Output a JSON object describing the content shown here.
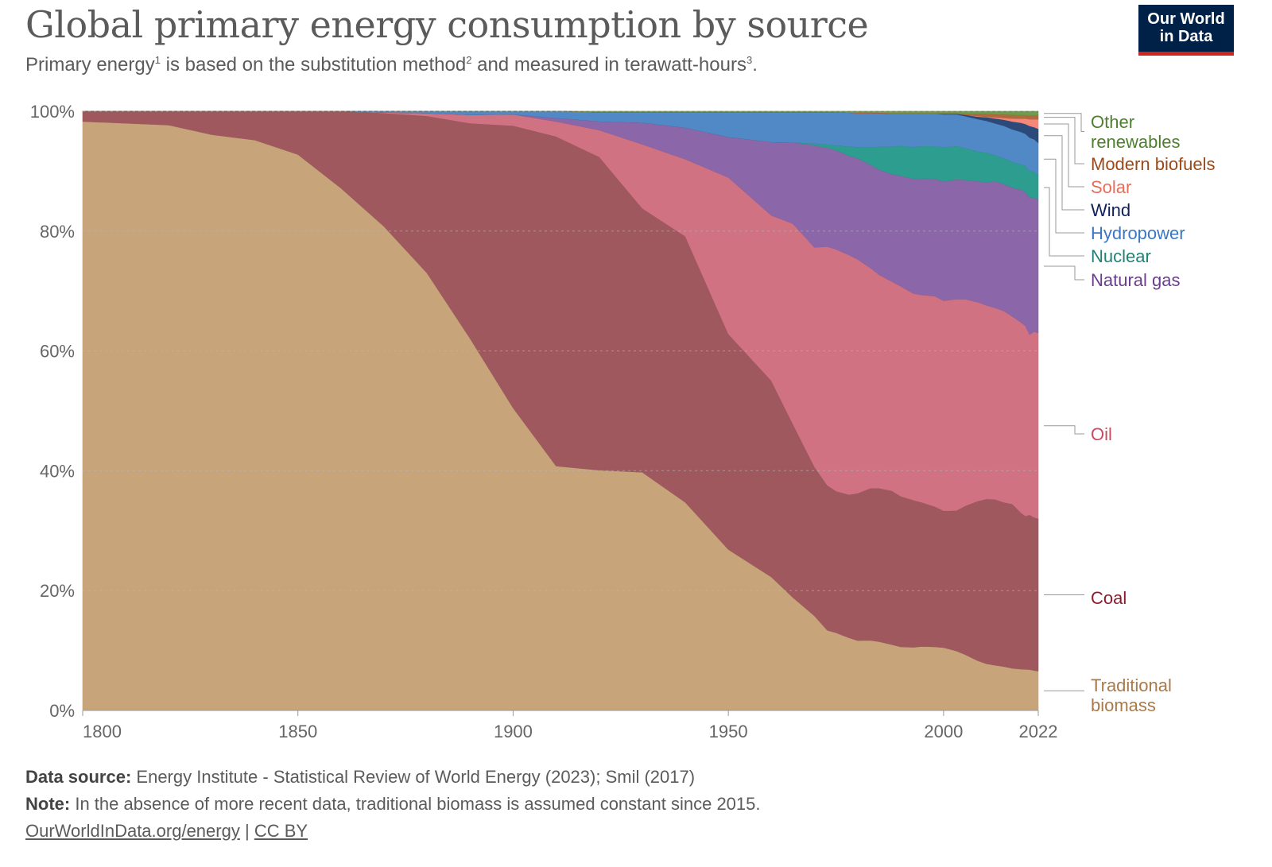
{
  "header": {
    "title": "Global primary energy consumption by source",
    "subtitle_parts": [
      "Primary energy",
      "1",
      " is based on the substitution method",
      "2",
      " and measured in terawatt-hours",
      "3",
      "."
    ],
    "logo_line1": "Our World",
    "logo_line2": "in Data"
  },
  "footer": {
    "source_label": "Data source:",
    "source_text": "Energy Institute - Statistical Review of World Energy (2023); Smil (2017)",
    "note_label": "Note:",
    "note_text": "In the absence of more recent data, traditional biomass is assumed constant since 2015.",
    "link_text": "OurWorldInData.org/energy",
    "separator": "|",
    "license_text": "CC BY"
  },
  "chart_data": {
    "type": "area",
    "stacked_percent": true,
    "x_ticks": [
      1800,
      1850,
      1900,
      1950,
      2000,
      2022
    ],
    "y_ticks": [
      0,
      20,
      40,
      60,
      80,
      100
    ],
    "y_tick_suffix": "%",
    "xlim": [
      1800,
      2022
    ],
    "ylim": [
      0,
      100
    ],
    "grid": "horizontal dashed",
    "legend_placement": "right, inline labels",
    "x": [
      1800,
      1820,
      1830,
      1840,
      1850,
      1860,
      1870,
      1880,
      1890,
      1900,
      1910,
      1920,
      1930,
      1940,
      1950,
      1960,
      1965,
      1970,
      1973,
      1975,
      1978,
      1980,
      1983,
      1985,
      1988,
      1990,
      1993,
      1995,
      1998,
      2000,
      2003,
      2005,
      2008,
      2010,
      2012,
      2014,
      2016,
      2018,
      2019,
      2020,
      2021,
      2022
    ],
    "series": [
      {
        "name": "Traditional biomass",
        "label_lines": [
          "Traditional",
          "biomass"
        ],
        "color": "#c8a47a",
        "label_color": "#a8794b",
        "values": [
          98.3,
          97.7,
          96.1,
          95.2,
          92.8,
          87,
          80.8,
          73,
          62.1,
          50.5,
          40.8,
          38.5,
          36.1,
          31.8,
          26.3,
          21.3,
          18.2,
          15.3,
          13.4,
          12.8,
          11.8,
          11.2,
          11.3,
          11.1,
          10.8,
          10.5,
          10.3,
          10.5,
          10.4,
          10.3,
          9.8,
          9.3,
          8.3,
          7.8,
          7.5,
          7.3,
          7,
          6.8,
          6.8,
          6.7,
          6.6,
          6.5
        ]
      },
      {
        "name": "Coal",
        "label_lines": [
          "Coal"
        ],
        "color": "#a0585f",
        "label_color": "#8c1c2f",
        "values": [
          1.7,
          2.3,
          3.9,
          4.8,
          7.2,
          12.8,
          18.9,
          26.2,
          35.9,
          47.1,
          55,
          50.2,
          40,
          40.6,
          35.2,
          31.3,
          27.9,
          24.1,
          24.2,
          23.3,
          23.2,
          23.6,
          24.5,
          24.7,
          25.2,
          24.8,
          24,
          23.6,
          22.9,
          22.4,
          23.1,
          24.7,
          26.7,
          27.5,
          27.5,
          27.3,
          27.3,
          25.7,
          25.3,
          25.3,
          25.2,
          25.2
        ]
      },
      {
        "name": "Oil",
        "label_lines": [
          "Oil"
        ],
        "color": "#d07282",
        "label_color": "#c84b61",
        "values": [
          0,
          0,
          0,
          0,
          0,
          0,
          0.1,
          0.5,
          1.4,
          1.9,
          2.5,
          4.3,
          9.7,
          11.8,
          25.6,
          26.4,
          32.3,
          35.5,
          39.9,
          39.8,
          38.9,
          37.5,
          35.5,
          34.4,
          34.3,
          34.6,
          33.7,
          34,
          34.4,
          34.4,
          34.8,
          34.4,
          33.2,
          32.3,
          31.8,
          31.8,
          31.2,
          31.3,
          31.4,
          29.5,
          30.6,
          30.7
        ]
      },
      {
        "name": "Natural gas",
        "label_lines": [
          "Natural gas"
        ],
        "color": "#8b66a8",
        "label_color": "#6b3d8f",
        "values": [
          0,
          0,
          0,
          0,
          0,
          0,
          0,
          0,
          0,
          0,
          0.6,
          1.4,
          3.3,
          4.8,
          6.6,
          11.7,
          13.1,
          16.5,
          16.5,
          16.3,
          16.1,
          16.2,
          16.6,
          16.9,
          17.6,
          18.2,
          18.7,
          19.1,
          19.2,
          19.5,
          19.7,
          19.8,
          20.2,
          20.6,
          21,
          21.1,
          21.4,
          21.8,
          22.1,
          22.4,
          22.1,
          22
        ]
      },
      {
        "name": "Nuclear",
        "label_lines": [
          "Nuclear"
        ],
        "color": "#2d9d8f",
        "label_color": "#1f8275",
        "values": [
          0,
          0,
          0,
          0,
          0,
          0,
          0,
          0,
          0,
          0,
          0,
          0,
          0,
          0,
          0,
          0,
          0,
          0.3,
          0.6,
          0.8,
          1.5,
          1.8,
          2.8,
          3.7,
          4.5,
          4.9,
          5.2,
          5.3,
          5.3,
          5.6,
          5.5,
          5.3,
          5,
          4.9,
          4.3,
          4.3,
          4.3,
          4.2,
          4.3,
          4.3,
          4.3,
          4
        ]
      },
      {
        "name": "Hydropower",
        "label_lines": [
          "Hydropower"
        ],
        "color": "#5089c6",
        "label_color": "#3b77c4",
        "values": [
          0,
          0,
          0,
          0,
          0,
          0,
          0.2,
          0.3,
          0.6,
          0.5,
          1.1,
          1.5,
          1.6,
          2.4,
          4.1,
          4.8,
          4.9,
          5.1,
          5.4,
          5.5,
          5.5,
          5.4,
          5.5,
          5.4,
          5.4,
          5.3,
          5.4,
          5.3,
          5.3,
          5.4,
          5.2,
          5.3,
          5.4,
          5.3,
          5.3,
          5.4,
          5.4,
          5.3,
          5.3,
          5.5,
          5.3,
          5.4
        ]
      },
      {
        "name": "Wind",
        "label_lines": [
          "Wind"
        ],
        "color": "#2b4a7a",
        "label_color": "#10205e",
        "values": [
          0,
          0,
          0,
          0,
          0,
          0,
          0,
          0,
          0,
          0,
          0,
          0,
          0,
          0,
          0,
          0,
          0,
          0,
          0,
          0,
          0,
          0,
          0,
          0,
          0,
          0,
          0,
          0,
          0,
          0.1,
          0.1,
          0.2,
          0.4,
          0.6,
          0.8,
          1,
          1.3,
          1.5,
          1.6,
          1.9,
          2,
          2.3
        ]
      },
      {
        "name": "Solar",
        "label_lines": [
          "Solar"
        ],
        "color": "#f4867a",
        "label_color": "#e56e5a",
        "values": [
          0,
          0,
          0,
          0,
          0,
          0,
          0,
          0,
          0,
          0,
          0,
          0,
          0,
          0,
          0,
          0,
          0,
          0,
          0,
          0,
          0,
          0,
          0,
          0,
          0,
          0,
          0,
          0,
          0,
          0,
          0,
          0,
          0.1,
          0.1,
          0.2,
          0.3,
          0.5,
          0.7,
          0.9,
          1.1,
          1.3,
          1.6
        ]
      },
      {
        "name": "Modern biofuels",
        "label_lines": [
          "Modern biofuels"
        ],
        "color": "#b06a3c",
        "label_color": "#9a4a1a",
        "values": [
          0,
          0,
          0,
          0,
          0,
          0,
          0,
          0,
          0,
          0,
          0,
          0,
          0,
          0,
          0,
          0,
          0,
          0,
          0,
          0,
          0,
          0.1,
          0.1,
          0.1,
          0.1,
          0.1,
          0.1,
          0.1,
          0.1,
          0.1,
          0.1,
          0.2,
          0.4,
          0.5,
          0.5,
          0.6,
          0.6,
          0.6,
          0.6,
          0.6,
          0.6,
          0.6
        ]
      },
      {
        "name": "Other renewables",
        "label_lines": [
          "Other",
          "renewables"
        ],
        "color": "#6e9b4e",
        "label_color": "#4d7f2e",
        "values": [
          0,
          0,
          0,
          0,
          0,
          0,
          0,
          0,
          0,
          0,
          0,
          0.1,
          0.1,
          0.1,
          0.1,
          0.1,
          0.1,
          0.1,
          0.1,
          0.1,
          0.2,
          0.2,
          0.2,
          0.2,
          0.3,
          0.3,
          0.3,
          0.3,
          0.3,
          0.3,
          0.3,
          0.4,
          0.4,
          0.4,
          0.5,
          0.5,
          0.6,
          0.6,
          0.6,
          0.7,
          0.7,
          0.7
        ]
      }
    ]
  }
}
